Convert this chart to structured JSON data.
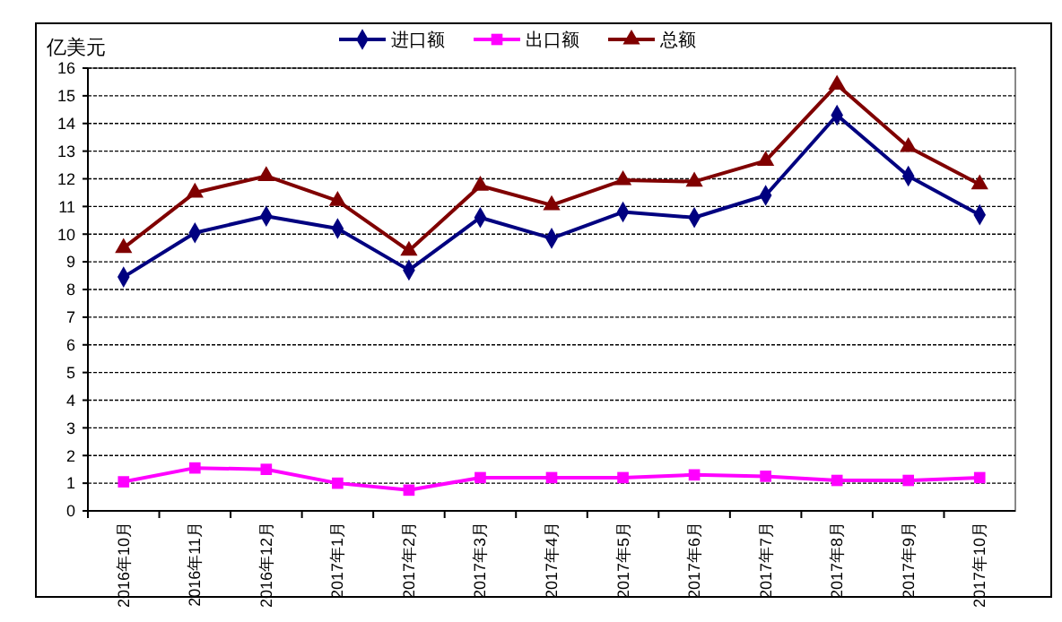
{
  "chart_data": {
    "type": "line",
    "ylabel": "亿美元",
    "categories": [
      "2016年10月",
      "2016年11月",
      "2016年12月",
      "2017年1月",
      "2017年2月",
      "2017年3月",
      "2017年4月",
      "2017年5月",
      "2017年6月",
      "2017年7月",
      "2017年8月",
      "2017年9月",
      "2017年10月"
    ],
    "series": [
      {
        "name": "进口额",
        "color": "#000080",
        "marker": "diamond",
        "values": [
          8.45,
          10.05,
          10.65,
          10.2,
          8.7,
          10.6,
          9.85,
          10.8,
          10.6,
          11.4,
          14.3,
          12.1,
          10.7
        ]
      },
      {
        "name": "出口额",
        "color": "#ff00ff",
        "marker": "square",
        "values": [
          1.05,
          1.55,
          1.5,
          1.0,
          0.75,
          1.2,
          1.2,
          1.2,
          1.3,
          1.25,
          1.1,
          1.1,
          1.2
        ]
      },
      {
        "name": "总额",
        "color": "#800000",
        "marker": "triangle",
        "values": [
          9.5,
          11.5,
          12.1,
          11.2,
          9.4,
          11.75,
          11.05,
          11.95,
          11.9,
          12.65,
          15.4,
          13.15,
          11.8
        ]
      }
    ],
    "ylim": [
      0,
      16
    ],
    "yticks": [
      0,
      1,
      2,
      3,
      4,
      5,
      6,
      7,
      8,
      9,
      10,
      11,
      12,
      13,
      14,
      15,
      16
    ],
    "grid": "y",
    "legend": "top",
    "line_style": "solid"
  }
}
